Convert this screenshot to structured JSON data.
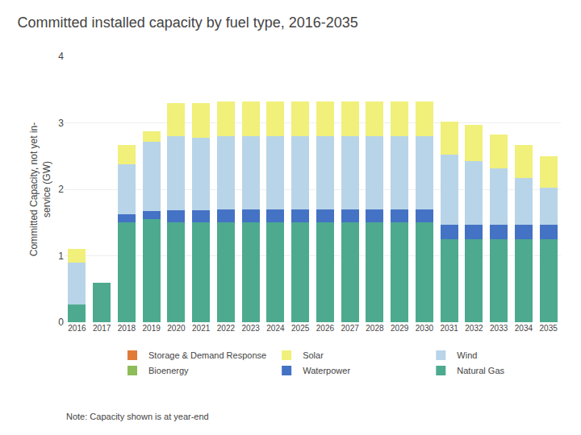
{
  "chart_data": {
    "type": "bar",
    "stacked": true,
    "title": "Committed installed capacity by fuel type, 2016-2035",
    "y_label": "Committed Capacity, not yet in-\nservice (GW)",
    "annotations": [
      "Note: Capacity shown is at year-end"
    ],
    "categories": [
      "2016",
      "2017",
      "2018",
      "2019",
      "2020",
      "2021",
      "2022",
      "2023",
      "2024",
      "2025",
      "2026",
      "2027",
      "2028",
      "2029",
      "2030",
      "2031",
      "2032",
      "2033",
      "2034",
      "2035"
    ],
    "series": [
      {
        "name": "Natural Gas",
        "color": "#4daa8f",
        "values": [
          0.27,
          0.6,
          1.5,
          1.55,
          1.5,
          1.5,
          1.5,
          1.5,
          1.5,
          1.5,
          1.5,
          1.5,
          1.5,
          1.5,
          1.5,
          1.25,
          1.25,
          1.25,
          1.25,
          1.25
        ]
      },
      {
        "name": "Waterpower",
        "color": "#4472c4",
        "values": [
          0.0,
          0.0,
          0.12,
          0.12,
          0.18,
          0.18,
          0.2,
          0.2,
          0.2,
          0.2,
          0.2,
          0.2,
          0.2,
          0.2,
          0.2,
          0.22,
          0.22,
          0.22,
          0.22,
          0.22
        ]
      },
      {
        "name": "Bioenergy",
        "color": "#8fbc5a",
        "values": [
          0.0,
          0.0,
          0.0,
          0.0,
          0.0,
          0.0,
          0.0,
          0.0,
          0.0,
          0.0,
          0.0,
          0.0,
          0.0,
          0.0,
          0.0,
          0.0,
          0.0,
          0.0,
          0.0,
          0.0
        ]
      },
      {
        "name": "Wind",
        "color": "#b8d4e8",
        "values": [
          0.63,
          0.0,
          0.75,
          1.05,
          1.12,
          1.1,
          1.1,
          1.1,
          1.1,
          1.1,
          1.1,
          1.1,
          1.1,
          1.1,
          1.1,
          1.05,
          0.95,
          0.85,
          0.7,
          0.55
        ]
      },
      {
        "name": "Solar",
        "color": "#f0f07a",
        "values": [
          0.2,
          0.0,
          0.3,
          0.15,
          0.5,
          0.52,
          0.52,
          0.52,
          0.52,
          0.52,
          0.52,
          0.52,
          0.52,
          0.52,
          0.52,
          0.5,
          0.55,
          0.5,
          0.5,
          0.48
        ]
      },
      {
        "name": "Storage & Demand Response",
        "color": "#e07b39",
        "values": [
          0.0,
          0.0,
          0.0,
          0.0,
          0.0,
          0.0,
          0.0,
          0.0,
          0.0,
          0.0,
          0.0,
          0.0,
          0.0,
          0.0,
          0.0,
          0.0,
          0.0,
          0.0,
          0.0,
          0.0
        ]
      }
    ],
    "ylim": [
      0,
      4
    ],
    "yticks": [
      0,
      1,
      2,
      3,
      4
    ],
    "grid": true,
    "legend": "bottom"
  }
}
